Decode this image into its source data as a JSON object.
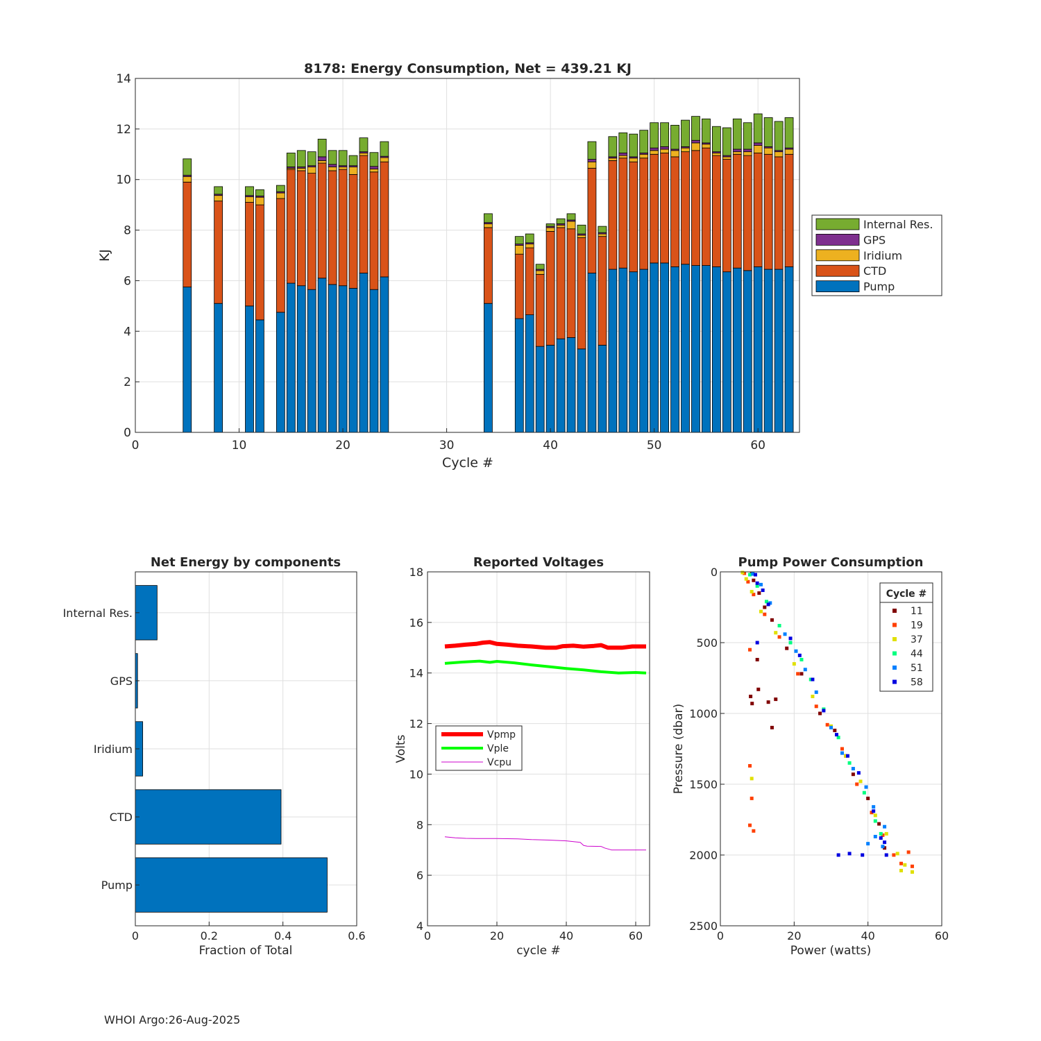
{
  "footer": "WHOI Argo:26-Aug-2025",
  "chart_data": [
    {
      "id": "energy",
      "type": "bar",
      "stacked": true,
      "title": "8178: Energy Consumption,  Net = 439.21 KJ",
      "xlabel": "Cycle #",
      "ylabel": "KJ",
      "xlim": [
        0,
        64
      ],
      "ylim": [
        0,
        14
      ],
      "xticks": [
        0,
        10,
        20,
        30,
        40,
        50,
        60
      ],
      "yticks": [
        0,
        2,
        4,
        6,
        8,
        10,
        12,
        14
      ],
      "grid": true,
      "legend_position": "right",
      "legend_order": [
        "Internal Res.",
        "GPS",
        "Iridium",
        "CTD",
        "Pump"
      ],
      "categories": [
        5,
        8,
        11,
        12,
        14,
        15,
        16,
        17,
        18,
        19,
        20,
        21,
        22,
        23,
        24,
        34,
        37,
        38,
        39,
        40,
        41,
        42,
        43,
        44,
        45,
        46,
        47,
        48,
        49,
        50,
        51,
        52,
        53,
        54,
        55,
        56,
        57,
        58,
        59,
        60,
        61,
        62,
        63
      ],
      "series": [
        {
          "name": "Pump",
          "color": "#0072BD",
          "values": [
            5.75,
            5.1,
            5.0,
            4.45,
            4.75,
            5.9,
            5.8,
            5.65,
            6.1,
            5.85,
            5.8,
            5.7,
            6.3,
            5.65,
            6.15,
            5.1,
            4.5,
            4.65,
            3.4,
            3.45,
            3.7,
            3.75,
            3.3,
            6.3,
            3.45,
            6.45,
            6.5,
            6.35,
            6.45,
            6.7,
            6.7,
            6.55,
            6.65,
            6.6,
            6.6,
            6.55,
            6.35,
            6.5,
            6.4,
            6.55,
            6.45,
            6.45,
            6.55
          ]
        },
        {
          "name": "CTD",
          "color": "#D95319",
          "values": [
            4.15,
            4.05,
            4.1,
            4.55,
            4.5,
            4.5,
            4.55,
            4.6,
            4.55,
            4.5,
            4.6,
            4.5,
            4.65,
            4.65,
            4.55,
            3.0,
            2.55,
            2.65,
            2.85,
            4.5,
            4.4,
            4.3,
            4.4,
            4.15,
            4.3,
            4.3,
            4.35,
            4.35,
            4.4,
            4.3,
            4.35,
            4.35,
            4.45,
            4.55,
            4.65,
            4.4,
            4.45,
            4.5,
            4.55,
            4.5,
            4.55,
            4.45,
            4.45
          ]
        },
        {
          "name": "Iridium",
          "color": "#EDB120",
          "values": [
            0.22,
            0.22,
            0.22,
            0.3,
            0.22,
            0.05,
            0.1,
            0.25,
            0.1,
            0.15,
            0.1,
            0.3,
            0.1,
            0.12,
            0.17,
            0.15,
            0.35,
            0.15,
            0.15,
            0.15,
            0.1,
            0.3,
            0.1,
            0.25,
            0.1,
            0.1,
            0.1,
            0.15,
            0.15,
            0.15,
            0.15,
            0.25,
            0.15,
            0.3,
            0.15,
            0.1,
            0.1,
            0.1,
            0.15,
            0.3,
            0.25,
            0.2,
            0.2
          ]
        },
        {
          "name": "GPS",
          "color": "#7E2F8E",
          "values": [
            0.05,
            0.05,
            0.05,
            0.05,
            0.05,
            0.05,
            0.05,
            0.05,
            0.15,
            0.1,
            0.05,
            0.05,
            0.05,
            0.1,
            0.05,
            0.05,
            0.05,
            0.05,
            0.05,
            0.05,
            0.05,
            0.05,
            0.05,
            0.1,
            0.05,
            0.05,
            0.1,
            0.05,
            0.05,
            0.1,
            0.1,
            0.05,
            0.05,
            0.1,
            0.05,
            0.05,
            0.05,
            0.1,
            0.1,
            0.1,
            0.05,
            0.05,
            0.05
          ]
        },
        {
          "name": "Internal Res.",
          "color": "#77AC30",
          "values": [
            0.65,
            0.3,
            0.35,
            0.25,
            0.25,
            0.55,
            0.65,
            0.55,
            0.7,
            0.55,
            0.6,
            0.4,
            0.55,
            0.55,
            0.58,
            0.35,
            0.3,
            0.35,
            0.2,
            0.1,
            0.2,
            0.25,
            0.35,
            0.7,
            0.25,
            0.8,
            0.8,
            0.9,
            0.9,
            1.0,
            0.95,
            0.95,
            1.05,
            0.95,
            0.95,
            1.0,
            1.1,
            1.2,
            1.05,
            1.15,
            1.15,
            1.15,
            1.2
          ]
        }
      ]
    },
    {
      "id": "components",
      "type": "bar",
      "orientation": "horizontal",
      "title": "Net Energy by components",
      "xlabel": "Fraction of Total",
      "xlim": [
        0,
        0.6
      ],
      "xticks": [
        "0",
        "0.2",
        "0.4",
        "0.6"
      ],
      "categories": [
        "Pump",
        "CTD",
        "Iridium",
        "GPS",
        "Internal Res."
      ],
      "values": [
        0.52,
        0.395,
        0.02,
        0.006,
        0.059
      ],
      "color": "#0072BD",
      "grid": true
    },
    {
      "id": "voltages",
      "type": "line",
      "title": "Reported Voltages",
      "xlabel": "cycle #",
      "ylabel": "Volts",
      "xlim": [
        0,
        64
      ],
      "ylim": [
        4,
        18
      ],
      "xticks": [
        0,
        20,
        40,
        60
      ],
      "yticks": [
        4,
        6,
        8,
        10,
        12,
        14,
        16,
        18
      ],
      "legend_position": "middle-left",
      "series": [
        {
          "name": "Vpmp",
          "color": "#FF0000",
          "x": [
            5,
            8,
            11,
            14,
            16,
            18,
            20,
            23,
            26,
            30,
            34,
            37,
            39,
            42,
            45,
            48,
            50,
            52,
            56,
            59,
            63
          ],
          "y": [
            15.05,
            15.08,
            15.12,
            15.15,
            15.2,
            15.22,
            15.15,
            15.12,
            15.08,
            15.05,
            15.0,
            15.0,
            15.06,
            15.08,
            15.04,
            15.07,
            15.1,
            15.0,
            15.0,
            15.05,
            15.05
          ]
        },
        {
          "name": "Vple",
          "color": "#00FF00",
          "x": [
            5,
            10,
            15,
            18,
            20,
            25,
            30,
            35,
            40,
            45,
            50,
            55,
            60,
            63
          ],
          "y": [
            14.38,
            14.43,
            14.47,
            14.42,
            14.46,
            14.4,
            14.32,
            14.25,
            14.18,
            14.12,
            14.05,
            14.0,
            14.02,
            14.0
          ]
        },
        {
          "name": "Vcpu",
          "color": "#CC00CC",
          "x": [
            5,
            8,
            11,
            14,
            20,
            26,
            30,
            35,
            40,
            44,
            45,
            46,
            50,
            51,
            53,
            56,
            63
          ],
          "y": [
            7.52,
            7.48,
            7.46,
            7.45,
            7.45,
            7.44,
            7.41,
            7.39,
            7.36,
            7.3,
            7.18,
            7.15,
            7.14,
            7.08,
            7.0,
            7.0,
            7.0
          ]
        }
      ]
    },
    {
      "id": "pump_power",
      "type": "scatter",
      "title": "Pump Power Consumption",
      "xlabel": "Power (watts)",
      "ylabel": "Pressure (dbar)",
      "xlim": [
        0,
        60
      ],
      "ylim": [
        0,
        2500
      ],
      "y_reversed": true,
      "xticks": [
        0,
        20,
        40,
        60
      ],
      "yticks": [
        0,
        500,
        1000,
        1500,
        2000,
        2500
      ],
      "legend_title": "Cycle #",
      "legend_position": "top-right",
      "series": [
        {
          "name": "11",
          "color": "#800000",
          "points": [
            [
              8.5,
              10
            ],
            [
              9,
              60
            ],
            [
              10.5,
              150
            ],
            [
              12,
              250
            ],
            [
              14,
              340
            ],
            [
              18,
              540
            ],
            [
              22,
              720
            ],
            [
              27,
              1000
            ],
            [
              31,
              1120
            ],
            [
              34,
              1300
            ],
            [
              36,
              1430
            ],
            [
              40,
              1600
            ],
            [
              43,
              1780
            ],
            [
              44.5,
              1950
            ],
            [
              8.2,
              880
            ],
            [
              8.6,
              930
            ],
            [
              10.3,
              830
            ],
            [
              13,
              920
            ],
            [
              15,
              900
            ],
            [
              14,
              1100
            ],
            [
              10,
              620
            ]
          ]
        },
        {
          "name": "19",
          "color": "#FF4000",
          "points": [
            [
              6.5,
              10
            ],
            [
              7.5,
              70
            ],
            [
              9,
              160
            ],
            [
              12,
              300
            ],
            [
              16,
              460
            ],
            [
              21,
              720
            ],
            [
              26,
              950
            ],
            [
              29,
              1080
            ],
            [
              33,
              1250
            ],
            [
              37,
              1500
            ],
            [
              41,
              1700
            ],
            [
              44,
              1860
            ],
            [
              47,
              2000
            ],
            [
              49,
              2060
            ],
            [
              52,
              2080
            ],
            [
              51,
              1980
            ],
            [
              8,
              1370
            ],
            [
              8.5,
              1600
            ],
            [
              9,
              1830
            ],
            [
              8,
              550
            ],
            [
              8,
              1790
            ]
          ]
        },
        {
          "name": "37",
          "color": "#E0E000",
          "points": [
            [
              6,
              5
            ],
            [
              7,
              50
            ],
            [
              8.5,
              140
            ],
            [
              11,
              280
            ],
            [
              15,
              430
            ],
            [
              20,
              650
            ],
            [
              25,
              880
            ],
            [
              30,
              1090
            ],
            [
              34,
              1300
            ],
            [
              38,
              1480
            ],
            [
              42,
              1720
            ],
            [
              45,
              1850
            ],
            [
              48,
              1990
            ],
            [
              50,
              2070
            ],
            [
              52,
              2120
            ],
            [
              49,
              2110
            ],
            [
              8.5,
              1460
            ]
          ]
        },
        {
          "name": "44",
          "color": "#00FF80",
          "points": [
            [
              8,
              20
            ],
            [
              10,
              100
            ],
            [
              12.5,
              210
            ],
            [
              16,
              380
            ],
            [
              19,
              500
            ],
            [
              22,
              620
            ],
            [
              24.5,
              760
            ],
            [
              28,
              970
            ],
            [
              32,
              1170
            ],
            [
              35,
              1350
            ],
            [
              39,
              1560
            ],
            [
              42,
              1760
            ],
            [
              43.5,
              1850
            ]
          ]
        },
        {
          "name": "51",
          "color": "#0080FF",
          "points": [
            [
              8.8,
              15
            ],
            [
              11,
              90
            ],
            [
              13.5,
              220
            ],
            [
              17.5,
              440
            ],
            [
              20.5,
              560
            ],
            [
              23,
              690
            ],
            [
              26,
              850
            ],
            [
              30,
              1100
            ],
            [
              33,
              1280
            ],
            [
              36,
              1390
            ],
            [
              39.5,
              1520
            ],
            [
              41.5,
              1660
            ],
            [
              44.5,
              1800
            ],
            [
              42,
              1870
            ],
            [
              40,
              1920
            ],
            [
              44,
              1940
            ]
          ]
        },
        {
          "name": "58",
          "color": "#0000E0",
          "points": [
            [
              9.5,
              20
            ],
            [
              10,
              80
            ],
            [
              11.5,
              130
            ],
            [
              13,
              230
            ],
            [
              19,
              470
            ],
            [
              21.5,
              590
            ],
            [
              25,
              760
            ],
            [
              28,
              980
            ],
            [
              31.5,
              1150
            ],
            [
              34.5,
              1300
            ],
            [
              37.5,
              1420
            ],
            [
              41.5,
              1690
            ],
            [
              43.5,
              1880
            ],
            [
              44.5,
              1910
            ],
            [
              45,
              2000
            ],
            [
              38.5,
              2000
            ],
            [
              35,
              1990
            ],
            [
              32,
              2000
            ],
            [
              10,
              500
            ]
          ]
        }
      ]
    }
  ]
}
